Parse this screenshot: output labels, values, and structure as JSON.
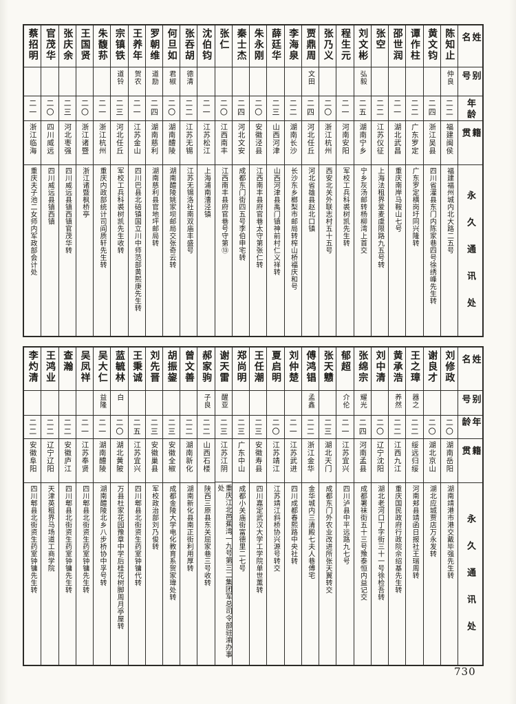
{
  "page_number": "730",
  "headers": {
    "name": "姓名",
    "alias": "别号",
    "age": "年龄",
    "native": "籍贯",
    "address": "永久通讯处"
  },
  "table_top": {
    "people": [
      {
        "name": "陈知止",
        "alias": "仲良",
        "age": "二二",
        "native": "福建闽侯",
        "address": "福建福州城内北大路二五号"
      },
      {
        "name": "黄文钧",
        "alias": "",
        "age": "二四",
        "native": "浙江吴县",
        "address": "四川省灌县东门内陈家巷四号徐绣峰先生转"
      },
      {
        "name": "谭作柱",
        "alias": "",
        "age": "二二",
        "native": "广东罗定",
        "address": "广东罗定横岗圩同兴隆转"
      },
      {
        "name": "邵世润",
        "alias": "",
        "age": "二一",
        "native": "湖北武昌",
        "address": "重庆南岸马鞍山七号"
      },
      {
        "name": "张空",
        "alias": "",
        "age": "二二",
        "native": "江苏仪征",
        "address": "上海法租界爱麦虞限路九五号转"
      },
      {
        "name": "刘文彬",
        "alias": "弘毅",
        "age": "二五",
        "native": "湖南宁乡",
        "address": "宁乡灰汤邮转杨柳湾上首交"
      },
      {
        "name": "程生元",
        "alias": "",
        "age": "二一",
        "native": "河南安阳",
        "address": "军校工兵科裘树凯先生转"
      },
      {
        "name": "张乃义",
        "alias": "",
        "age": "二〇",
        "native": "浙江杭州",
        "address": "西安北关外联志村五十五号"
      },
      {
        "name": "贾鼎周",
        "alias": "文田",
        "age": "二四",
        "native": "河北任丘",
        "address": "河北省雄县赵北口镇"
      },
      {
        "name": "李海泉",
        "alias": "",
        "age": "二二",
        "native": "湖南长沙",
        "address": "长沙东乡榔梨市邮局转榨山桥福庆和号"
      },
      {
        "name": "薛廷华",
        "alias": "",
        "age": "二三",
        "native": "山西河津",
        "address": "山西河津县禹门镇神前村仁义祥转"
      },
      {
        "name": "朱永刚",
        "alias": "",
        "age": "二〇",
        "native": "安徽泾县",
        "address": "江西南丰县府官巷太守第张仁转"
      },
      {
        "name": "秦士杰",
        "alias": "",
        "age": "二四",
        "native": "河北文安",
        "address": "成都东门街四五号李伯申宅转"
      },
      {
        "name": "张仁",
        "alias": "",
        "age": "二〇",
        "native": "江西南丰",
        "address": "江西南丰县府官巷号守第⑬"
      },
      {
        "name": "沈伯钧",
        "alias": "",
        "age": "二一",
        "native": "江苏松江",
        "address": "上海浦南漕泾镇"
      },
      {
        "name": "张吞胡",
        "alias": "德清",
        "age": "二二",
        "native": "江苏无锡",
        "address": "江苏无锡洛社南双庙丰盛号"
      },
      {
        "name": "何旦如",
        "alias": "君椒",
        "age": "二〇",
        "native": "湖南醴陵",
        "address": "湖南醴陵姚家坝邮局交张奇云转"
      },
      {
        "name": "罗朝维",
        "alias": "道励",
        "age": "二四",
        "native": "湖南慈利",
        "address": "湖南慈利县官地坪邮局转"
      },
      {
        "name": "王养年",
        "alias": "贺农",
        "age": "二一",
        "native": "江苏金山",
        "address": "四川巴县北碚镇国立川中师范部黄熙庚先生转"
      },
      {
        "name": "宗镇铁",
        "alias": "道铃",
        "age": "二三",
        "native": "河北任丘",
        "address": "军校工兵科裘树凯先生收转"
      },
      {
        "name": "朱馥荪",
        "alias": "",
        "age": "二一",
        "native": "浙江杭州",
        "address": "重庆内政部统计司阎质轩先生转"
      },
      {
        "name": "王国贤",
        "alias": "",
        "age": "二〇",
        "native": "浙江诸暨",
        "address": "浙江诸暨枫桥亭"
      },
      {
        "name": "张庆余",
        "alias": "",
        "age": "二三",
        "native": "河北枣强",
        "address": "四川威远县镇西镇官茂华转"
      },
      {
        "name": "官茂华",
        "alias": "",
        "age": "二〇",
        "native": "四川威远",
        "address": "四川威远县镇西镇"
      },
      {
        "name": "蔡招明",
        "alias": "",
        "age": "二一",
        "native": "浙江临海",
        "address": "重庆夫子池二女师内军政部会计处"
      }
    ]
  },
  "table_bottom": {
    "people": [
      {
        "name": "刘修政",
        "alias": "",
        "age": "二〇",
        "native": "湖南岳阳",
        "address": "湖南靖港市港交戴毕强先生转"
      },
      {
        "name": "谢良才",
        "alias": "",
        "age": "二〇",
        "native": "湖北京山",
        "address": "湖北应城贾店万永发转"
      },
      {
        "name": "王之璋",
        "alias": "器之",
        "age": "二二",
        "native": "绥远归绥",
        "address": "河南郏县靖函日报社王瑞周转"
      },
      {
        "name": "黄承浩",
        "alias": "养然",
        "age": "二二",
        "native": "江西九江",
        "address": "重庆国民政府行政院佘绍基先生转"
      },
      {
        "name": "刘中清",
        "alias": "",
        "age": "二〇",
        "native": "辽宁沈阳",
        "address": "湖北老河口丁字街三十一号徐检吾转"
      },
      {
        "name": "张绵宗",
        "alias": "耀光",
        "age": "二四",
        "native": "河南孟县",
        "address": "成都署袜街五十三号豫泰恒内益记交"
      },
      {
        "name": "郁超",
        "alias": "介伦",
        "age": "二一",
        "native": "江苏宜兴",
        "address": "四川泸县中平远路九七号"
      },
      {
        "name": "张天戆",
        "alias": "",
        "age": "二三",
        "native": "湖北天门",
        "address": "成都东门外农业改进所张天翼转交"
      },
      {
        "name": "傅鸿锠",
        "alias": "孟鑫",
        "age": "二二",
        "native": "浙江金华",
        "address": "金华城内三清殿七夫人巷傅宅"
      },
      {
        "name": "刘仲楚",
        "alias": "",
        "age": "二一",
        "native": "江苏武进",
        "address": "四川成都春熙路中央社转"
      },
      {
        "name": "夏启明",
        "alias": "",
        "age": "二〇",
        "native": "江苏靖江",
        "address": "江苏靖江斜桥协兴源号转交"
      },
      {
        "name": "王任潮",
        "alias": "",
        "age": "二三",
        "native": "安徽寿县",
        "address": "四川嘉定武汉大学工学院单世薰转"
      },
      {
        "name": "郑尚明",
        "alias": "",
        "age": "二三",
        "native": "广东中山",
        "address": "成都小关庙街富德里二七号"
      },
      {
        "name": "谢天雷",
        "alias": "醒亚",
        "age": "二三",
        "native": "江苏江阴",
        "address": "重庆江北芭蕉湾一九号第三二集团军总司令部驻渝办事处"
      },
      {
        "name": "郝家驹",
        "alias": "子良",
        "age": "二二",
        "native": "山西石楼",
        "address": "陕西三原县东关屈家巷三号收转"
      },
      {
        "name": "曾文善",
        "alias": "",
        "age": "二二",
        "native": "湖南新化",
        "address": "湖南新化县南正街利用厚转"
      },
      {
        "name": "胡振鋆",
        "alias": "",
        "age": "二三",
        "native": "安徽全椒",
        "address": "成都金陵大学电化教育系贺家瑋处转"
      },
      {
        "name": "刘先晋",
        "alias": "",
        "age": "二三",
        "native": "安徽巢县",
        "address": "军校政治部刘乃俊转"
      },
      {
        "name": "王秉诚",
        "alias": "",
        "age": "二五",
        "native": "江苏宜兴",
        "address": "四川郫县北街资生药室钟镛代转"
      },
      {
        "name": "蓝毓林",
        "alias": "白",
        "age": "二〇",
        "native": "湖北黄陂",
        "address": "万县杜家花园豫章中学后桂花树脚周月亭屋转"
      },
      {
        "name": "吴大仁",
        "alias": "益隆",
        "age": "二一",
        "native": "湖南醴陵",
        "address": "湖南醴陵北乡八步桥协中孚号转"
      },
      {
        "name": "吴凤祥",
        "alias": "",
        "age": "二一",
        "native": "江苏奉贤",
        "address": "四川郫县北街资生药室钟镛先生转"
      },
      {
        "name": "查瀚",
        "alias": "",
        "age": "二二",
        "native": "安徽庐江",
        "address": "四川郫县北街资生药室钟镛先生转"
      },
      {
        "name": "王鸿业",
        "alias": "",
        "age": "二二",
        "native": "辽宁辽阳",
        "address": "天津英租界马场道工商学院"
      },
      {
        "name": "李灼清",
        "alias": "",
        "age": "二二",
        "native": "安徽阜阳",
        "address": "四川郫县北街资生药室钟镛先生转"
      }
    ]
  }
}
